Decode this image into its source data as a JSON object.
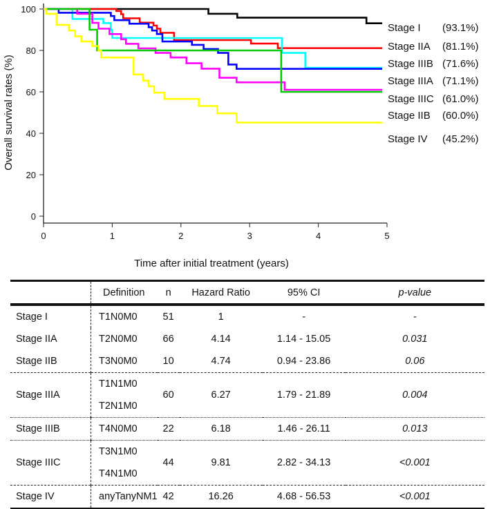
{
  "chart_data": {
    "type": "line",
    "xlabel": "Time after initial treatment (years)",
    "ylabel": "Overall survival rates (%)",
    "xlim": [
      0,
      5
    ],
    "ylim": [
      0,
      100
    ],
    "xticks": [
      0,
      1,
      2,
      3,
      4,
      5
    ],
    "yticks": [
      0,
      20,
      40,
      60,
      80,
      100
    ],
    "grid": false,
    "legend": "right",
    "series": [
      {
        "name": "Stage I",
        "pct": "(93.1%)",
        "color": "#000000",
        "end": 4.93,
        "steps": [
          [
            0,
            100
          ],
          [
            2.4,
            97.7
          ],
          [
            2.82,
            95.8
          ],
          [
            4.7,
            93.1
          ]
        ]
      },
      {
        "name": "Stage IIA",
        "pct": "(81.1%)",
        "color": "#ff0000",
        "end": 4.93,
        "steps": [
          [
            0,
            100
          ],
          [
            1.06,
            99
          ],
          [
            1.13,
            97.5
          ],
          [
            1.16,
            95.5
          ],
          [
            1.4,
            93.4
          ],
          [
            1.6,
            92
          ],
          [
            1.65,
            90.5
          ],
          [
            1.7,
            88.5
          ],
          [
            1.9,
            85
          ],
          [
            3.02,
            83.3
          ],
          [
            3.41,
            81.1
          ]
        ]
      },
      {
        "name": "Stage IIIB",
        "pct": "(71.6%)",
        "color": "#00ffff",
        "end": 4.93,
        "steps": [
          [
            0,
            100
          ],
          [
            0.42,
            95.2
          ],
          [
            0.87,
            93.2
          ],
          [
            0.98,
            89.9
          ],
          [
            1.0,
            86
          ],
          [
            3.47,
            78.8
          ],
          [
            3.81,
            71.6
          ]
        ]
      },
      {
        "name": "Stage IIIA",
        "pct": "(71.1%)",
        "color": "#0000ff",
        "end": 4.93,
        "steps": [
          [
            0,
            100
          ],
          [
            0.22,
            98.2
          ],
          [
            0.98,
            96.6
          ],
          [
            1.03,
            94.6
          ],
          [
            1.25,
            92.9
          ],
          [
            1.53,
            91.2
          ],
          [
            1.58,
            89.6
          ],
          [
            1.65,
            87.9
          ],
          [
            1.73,
            84.3
          ],
          [
            2.16,
            82.7
          ],
          [
            2.33,
            80.7
          ],
          [
            2.54,
            78.8
          ],
          [
            2.69,
            73.2
          ],
          [
            2.81,
            71.1
          ]
        ]
      },
      {
        "name": "Stage IIIC",
        "pct": "(61.0%)",
        "color": "#ff00ff",
        "end": 4.93,
        "steps": [
          [
            0,
            100
          ],
          [
            0.49,
            97.7
          ],
          [
            0.71,
            93.3
          ],
          [
            0.8,
            90.5
          ],
          [
            0.96,
            87.9
          ],
          [
            1.13,
            85.4
          ],
          [
            1.2,
            83.2
          ],
          [
            1.38,
            81
          ],
          [
            1.63,
            78.8
          ],
          [
            1.85,
            76.6
          ],
          [
            2.08,
            73.8
          ],
          [
            2.3,
            71.2
          ],
          [
            2.56,
            66.8
          ],
          [
            2.81,
            64.6
          ],
          [
            3.51,
            61.0
          ]
        ]
      },
      {
        "name": "Stage IIB",
        "pct": "(60.0%)",
        "color": "#00cc00",
        "end": 4.93,
        "steps": [
          [
            0,
            100
          ],
          [
            0.67,
            90
          ],
          [
            0.78,
            80
          ],
          [
            3.46,
            60
          ]
        ]
      },
      {
        "name": "Stage IV",
        "pct": "(45.2%)",
        "color": "#ffff00",
        "end": 4.93,
        "steps": [
          [
            0,
            100
          ],
          [
            0.04,
            97.7
          ],
          [
            0.19,
            92.3
          ],
          [
            0.37,
            89.6
          ],
          [
            0.46,
            86.8
          ],
          [
            0.55,
            84.3
          ],
          [
            0.71,
            82.1
          ],
          [
            0.8,
            79.9
          ],
          [
            0.84,
            76.6
          ],
          [
            1.31,
            68.4
          ],
          [
            1.45,
            65.4
          ],
          [
            1.53,
            62.7
          ],
          [
            1.61,
            59.6
          ],
          [
            1.76,
            56.6
          ],
          [
            2.26,
            53.2
          ],
          [
            2.53,
            49.6
          ],
          [
            2.81,
            45.2
          ]
        ]
      }
    ]
  },
  "table": {
    "headers": {
      "stage": "",
      "definition": "Definition",
      "n": "n",
      "hr": "Hazard Ratio",
      "ci": "95% CI",
      "p": "p-value"
    },
    "rows": [
      {
        "stage": "Stage I",
        "def": [
          "T1N0M0"
        ],
        "n": "51",
        "hr": "1",
        "ci": "-",
        "p": "-"
      },
      {
        "stage": "Stage IIA",
        "def": [
          "T2N0M0"
        ],
        "n": "66",
        "hr": "4.14",
        "ci": "1.14 - 15.05",
        "p": "0.031"
      },
      {
        "stage": "Stage IIB",
        "def": [
          "T3N0M0"
        ],
        "n": "10",
        "hr": "4.74",
        "ci": "0.94 - 23.86",
        "p": "0.06"
      },
      {
        "stage": "Stage IIIA",
        "def": [
          "T1N1M0",
          "T2N1M0"
        ],
        "n": "60",
        "hr": "6.27",
        "ci": "1.79 - 21.89",
        "p": "0.004"
      },
      {
        "stage": "Stage IIIB",
        "def": [
          "T4N0M0"
        ],
        "n": "22",
        "hr": "6.18",
        "ci": "1.46 - 26.11",
        "p": "0.013"
      },
      {
        "stage": "Stage IIIC",
        "def": [
          "T3N1M0",
          "T4N1M0"
        ],
        "n": "44",
        "hr": "9.81",
        "ci": "2.82 - 34.13",
        "p": "<0.001"
      },
      {
        "stage": "Stage IV",
        "def": [
          "anyTanyNM1"
        ],
        "n": "42",
        "hr": "16.26",
        "ci": "4.68 - 56.53",
        "p": "<0.001"
      }
    ]
  }
}
